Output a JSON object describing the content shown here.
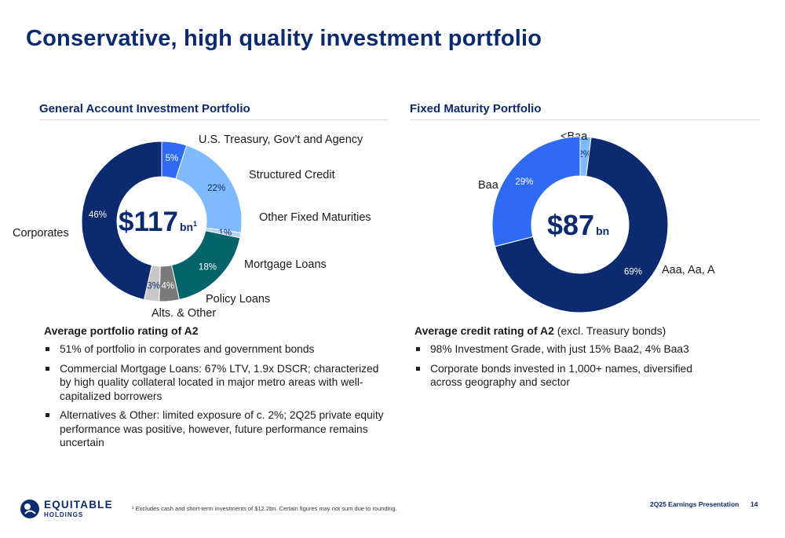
{
  "page": {
    "title": "Conservative, high quality investment portfolio",
    "page_number": "14",
    "presentation": "2Q25 Earnings Presentation",
    "footnote": "¹ Excludes cash and short-term investments of $12.2bn. Certain figures may not sum due to rounding.",
    "logo": {
      "name": "EQUITABLE",
      "sub": "HOLDINGS"
    }
  },
  "left": {
    "heading": "General Account Investment Portfolio",
    "lead_bold": "Average portfolio rating of A2",
    "lead_rest": "",
    "bullets": [
      "51% of portfolio in corporates and government bonds",
      "Commercial Mortgage Loans: 67% LTV, 1.9x DSCR; characterized by high quality collateral located in major metro areas with well-capitalized borrowers",
      "Alternatives & Other: limited exposure of c. 2%; 2Q25 private equity performance was positive, however, future performance remains uncertain"
    ]
  },
  "right": {
    "heading": "Fixed Maturity Portfolio",
    "lead_bold": "Average credit rating of A2",
    "lead_rest": " (excl. Treasury bonds)",
    "bullets": [
      "98% Investment Grade, with just 15% Baa2, 4% Baa3",
      "Corporate bonds invested in 1,000+ names, diversified across geography and sector"
    ]
  },
  "chart_data": [
    {
      "type": "pie",
      "title": "General Account Investment Portfolio",
      "center_value": "$117",
      "center_unit": "bn",
      "center_sup": "1",
      "categories": [
        "U.S. Treasury, Gov’t and Agency",
        "Structured Credit",
        "Other Fixed Maturities",
        "Mortgage Loans",
        "Policy Loans",
        "Alts. & Other",
        "Corporates"
      ],
      "values": [
        5,
        22,
        1,
        18,
        4,
        3,
        46
      ],
      "labels": [
        "5%",
        "22%",
        "1%",
        "18%",
        "4%",
        "3%",
        "46%"
      ],
      "colors": [
        "#2f6bf2",
        "#7fbaff",
        "#b6cff0",
        "#05636b",
        "#7a7a7a",
        "#c8c8c8",
        "#0b2a6f"
      ],
      "label_colors": [
        "#ffffff",
        "#0b2a6f",
        "#0b2a6f",
        "#ffffff",
        "#ffffff",
        "#0b2a6f",
        "#ffffff"
      ]
    },
    {
      "type": "pie",
      "title": "Fixed Maturity Portfolio",
      "center_value": "$87",
      "center_unit": "bn",
      "center_sup": "",
      "categories": [
        "<Baa",
        "Aaa, Aa, A",
        "Baa"
      ],
      "values": [
        2,
        69,
        29
      ],
      "labels": [
        "2%",
        "69%",
        "29%"
      ],
      "colors": [
        "#7fbaff",
        "#0b2a6f",
        "#2f6bf2"
      ],
      "label_colors": [
        "#0b2a6f",
        "#ffffff",
        "#ffffff"
      ]
    }
  ]
}
